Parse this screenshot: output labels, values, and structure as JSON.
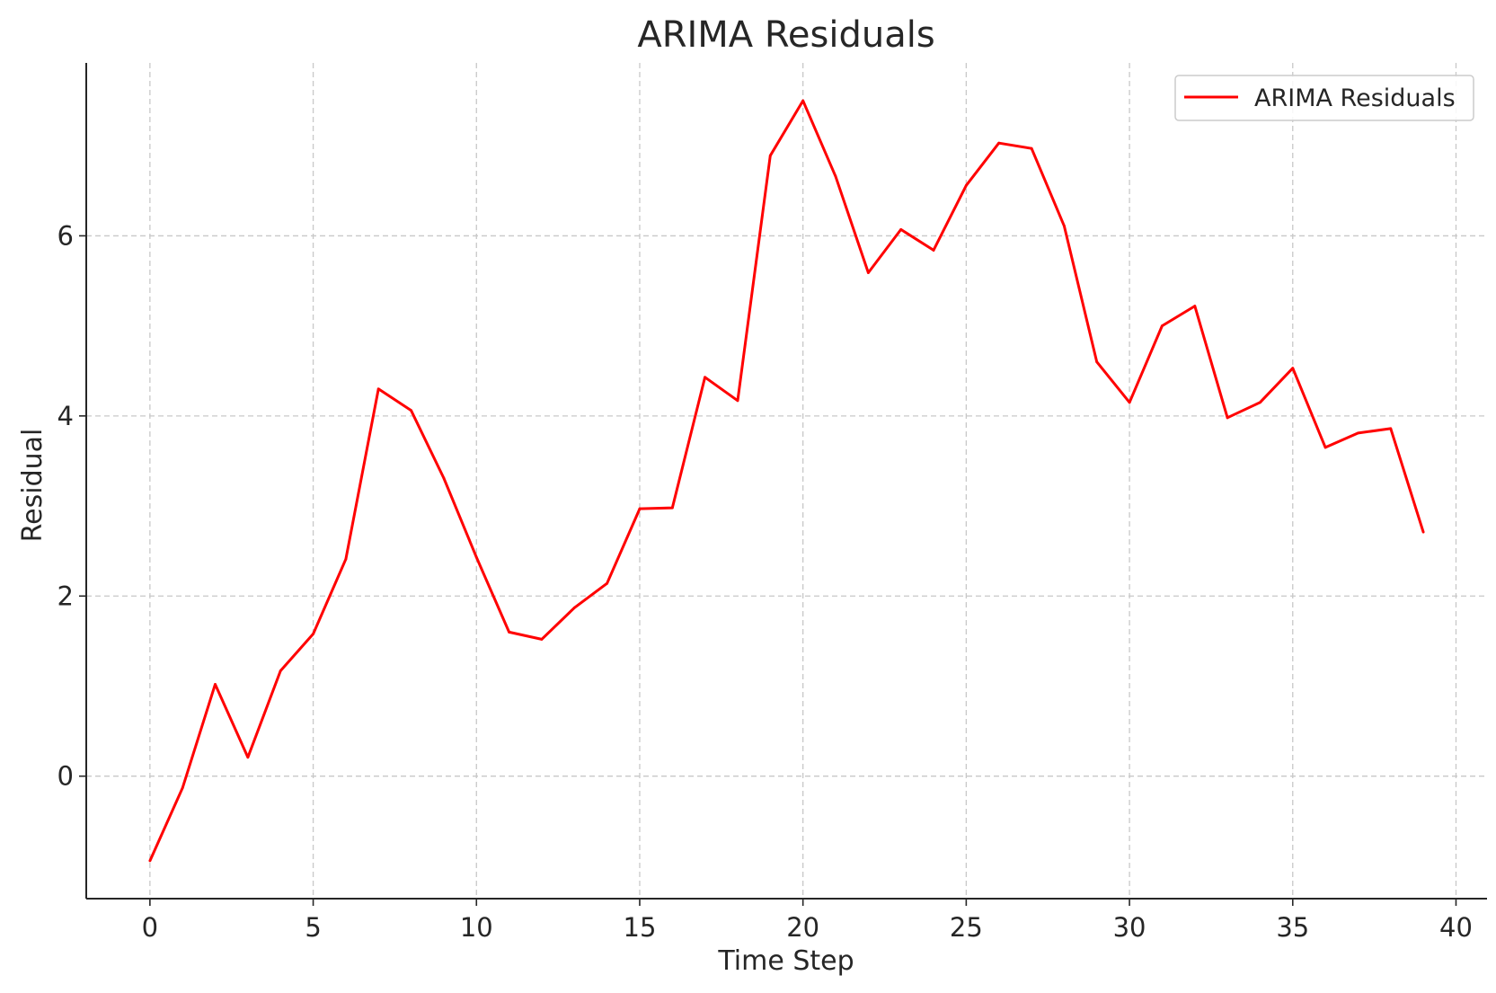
{
  "chart_data": {
    "type": "line",
    "title": "ARIMA Residuals",
    "xlabel": "Time Step",
    "ylabel": "Residual",
    "xlim": [
      -1.95,
      40.95
    ],
    "ylim": [
      -1.36,
      7.92
    ],
    "xticks": [
      0,
      5,
      10,
      15,
      20,
      25,
      30,
      35,
      40
    ],
    "xtick_labels": [
      "0",
      "5",
      "10",
      "15",
      "20",
      "25",
      "30",
      "35",
      "40"
    ],
    "yticks": [
      0,
      2,
      4,
      6
    ],
    "ytick_labels": [
      "0",
      "2",
      "4",
      "6"
    ],
    "grid": true,
    "legend_position": "top-right",
    "series": [
      {
        "name": "ARIMA Residuals",
        "color": "#ff0000",
        "x": [
          0,
          1,
          2,
          3,
          4,
          5,
          6,
          7,
          8,
          9,
          10,
          11,
          12,
          13,
          14,
          15,
          16,
          17,
          18,
          19,
          20,
          21,
          22,
          23,
          24,
          25,
          26,
          27,
          28,
          29,
          30,
          31,
          32,
          33,
          34,
          35,
          36,
          37,
          38,
          39
        ],
        "values": [
          -0.94,
          -0.13,
          1.02,
          0.21,
          1.17,
          1.58,
          2.41,
          4.3,
          4.06,
          3.31,
          2.43,
          1.6,
          1.52,
          1.87,
          2.14,
          2.97,
          2.98,
          4.43,
          4.17,
          6.89,
          7.5,
          6.66,
          5.59,
          6.07,
          5.84,
          6.56,
          7.03,
          6.97,
          6.11,
          4.6,
          4.15,
          5.0,
          5.22,
          3.98,
          4.15,
          4.53,
          3.65,
          3.81,
          3.86,
          2.71
        ]
      }
    ]
  }
}
